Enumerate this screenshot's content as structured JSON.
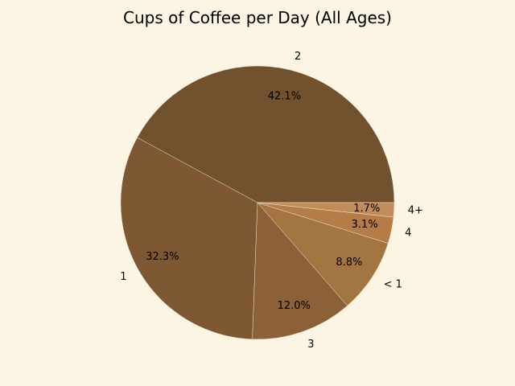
{
  "chart_data": {
    "type": "pie",
    "title": "Cups of Coffee per Day (All Ages)",
    "slices": [
      {
        "label": "2",
        "value": 42.1,
        "pct_label": "42.1%",
        "color": "#72522e"
      },
      {
        "label": "1",
        "value": 32.3,
        "pct_label": "32.3%",
        "color": "#7d5833"
      },
      {
        "label": "3",
        "value": 12.0,
        "pct_label": "12.0%",
        "color": "#8d6138"
      },
      {
        "label": "< 1",
        "value": 8.8,
        "pct_label": "8.8%",
        "color": "#a37541"
      },
      {
        "label": "4",
        "value": 3.1,
        "pct_label": "3.1%",
        "color": "#b47d48"
      },
      {
        "label": "4+",
        "value": 1.7,
        "pct_label": "1.7%",
        "color": "#c08d5a"
      }
    ],
    "start_angle_deg": 0,
    "direction": "counterclockwise",
    "legend": "none"
  },
  "colors": {
    "background": "#fdf5e3",
    "slice_edge": "#fdf5e3"
  }
}
